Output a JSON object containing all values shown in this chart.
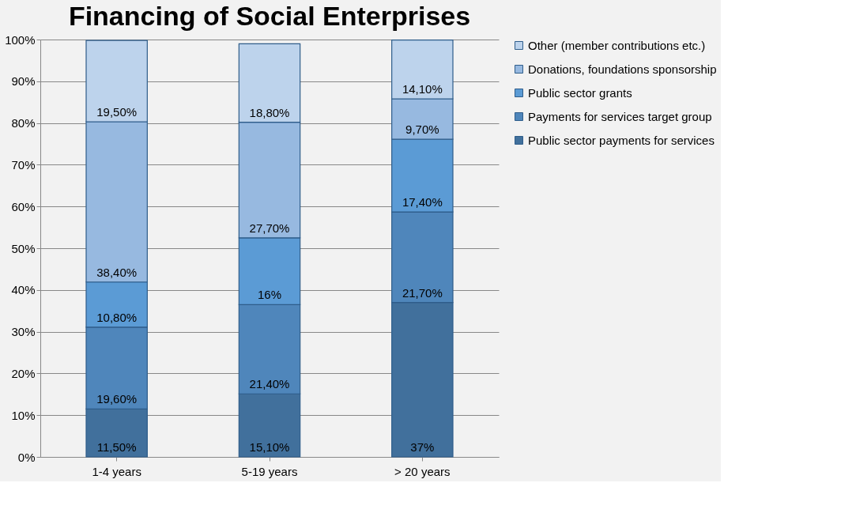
{
  "chart_data": {
    "type": "bar",
    "title": "Financing of Social Enterprises",
    "categories": [
      "1-4 years",
      "5-19 years",
      "> 20 years"
    ],
    "stacked": true,
    "series": [
      {
        "name": "Public sector payments for services",
        "color": "#41709c",
        "values": [
          11.5,
          15.1,
          37
        ],
        "value_labels": [
          "11,50%",
          "15,10%",
          "37%"
        ]
      },
      {
        "name": "Payments for services target group",
        "color": "#4f86bb",
        "values": [
          19.6,
          21.4,
          21.7
        ],
        "value_labels": [
          "19,60%",
          "21,40%",
          "21,70%"
        ]
      },
      {
        "name": "Public sector grants",
        "color": "#5b9bd5",
        "values": [
          10.8,
          16,
          17.4
        ],
        "value_labels": [
          "10,80%",
          "16%",
          "17,40%"
        ]
      },
      {
        "name": "Donations, foundations sponsorship",
        "color": "#97b9e0",
        "values": [
          38.4,
          27.7,
          9.7
        ],
        "value_labels": [
          "38,40%",
          "27,70%",
          "9,70%"
        ]
      },
      {
        "name": "Other (member contributions etc.)",
        "color": "#bdd3ec",
        "values": [
          19.5,
          18.8,
          14.1
        ],
        "value_labels": [
          "19,50%",
          "18,80%",
          "14,10%"
        ]
      }
    ],
    "ylim": [
      0,
      100
    ],
    "yticks": [
      {
        "value": 0,
        "label": "0%"
      },
      {
        "value": 10,
        "label": "10%"
      },
      {
        "value": 20,
        "label": "20%"
      },
      {
        "value": 30,
        "label": "30%"
      },
      {
        "value": 40,
        "label": "40%"
      },
      {
        "value": 50,
        "label": "50%"
      },
      {
        "value": 60,
        "label": "60%"
      },
      {
        "value": 70,
        "label": "70%"
      },
      {
        "value": 80,
        "label": "80%"
      },
      {
        "value": 90,
        "label": "90%"
      },
      {
        "value": 100,
        "label": "100%"
      }
    ],
    "grid": "y",
    "legend": "right"
  }
}
